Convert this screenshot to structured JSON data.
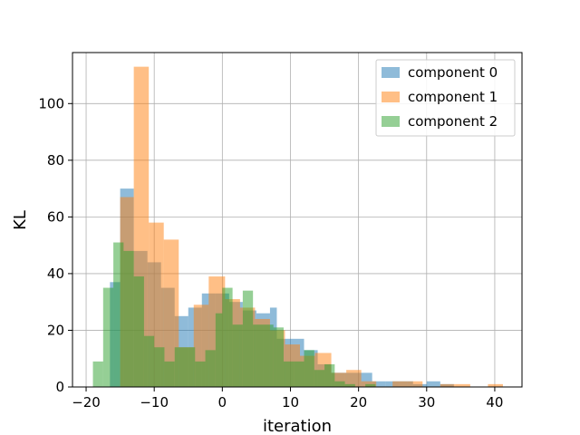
{
  "chart_data": {
    "type": "histogram",
    "title": "",
    "xlabel": "iteration",
    "ylabel": "KL",
    "xlim": [
      -22,
      44
    ],
    "ylim": [
      0,
      118
    ],
    "xticks": [
      -20,
      -10,
      0,
      10,
      20,
      30,
      40
    ],
    "yticks": [
      0,
      20,
      40,
      60,
      80,
      100
    ],
    "grid": true,
    "legend_position": "top-right",
    "series": [
      {
        "name": "component 0",
        "color": "#1f77b4",
        "alpha": 0.5,
        "bins": [
          {
            "x0": -16.5,
            "x1": -15.0,
            "count": 37
          },
          {
            "x0": -15.0,
            "x1": -13.0,
            "count": 70
          },
          {
            "x0": -13.0,
            "x1": -11.0,
            "count": 48
          },
          {
            "x0": -11.0,
            "x1": -9.0,
            "count": 44
          },
          {
            "x0": -9.0,
            "x1": -7.0,
            "count": 35
          },
          {
            "x0": -7.0,
            "x1": -5.0,
            "count": 25
          },
          {
            "x0": -5.0,
            "x1": -3.0,
            "count": 28
          },
          {
            "x0": -3.0,
            "x1": -1.0,
            "count": 33
          },
          {
            "x0": -1.0,
            "x1": 1.0,
            "count": 33
          },
          {
            "x0": 1.0,
            "x1": 3.0,
            "count": 30
          },
          {
            "x0": 3.0,
            "x1": 5.0,
            "count": 27
          },
          {
            "x0": 5.0,
            "x1": 7.0,
            "count": 26
          },
          {
            "x0": 7.0,
            "x1": 8.0,
            "count": 28
          },
          {
            "x0": 8.0,
            "x1": 10.0,
            "count": 17
          },
          {
            "x0": 10.0,
            "x1": 12.0,
            "count": 17
          },
          {
            "x0": 12.0,
            "x1": 14.0,
            "count": 13
          },
          {
            "x0": 14.0,
            "x1": 16.0,
            "count": 8
          },
          {
            "x0": 16.0,
            "x1": 18.0,
            "count": 5
          },
          {
            "x0": 18.0,
            "x1": 20.0,
            "count": 5
          },
          {
            "x0": 20.0,
            "x1": 22.0,
            "count": 5
          },
          {
            "x0": 22.0,
            "x1": 24.0,
            "count": 2
          },
          {
            "x0": 24.0,
            "x1": 26.0,
            "count": 2
          },
          {
            "x0": 26.0,
            "x1": 28.0,
            "count": 2
          },
          {
            "x0": 28.0,
            "x1": 30.0,
            "count": 1
          },
          {
            "x0": 30.0,
            "x1": 32.0,
            "count": 2
          },
          {
            "x0": 32.0,
            "x1": 34.0,
            "count": 1
          }
        ]
      },
      {
        "name": "component 1",
        "color": "#ff7f0e",
        "alpha": 0.5,
        "bins": [
          {
            "x0": -15.0,
            "x1": -13.0,
            "count": 67
          },
          {
            "x0": -13.0,
            "x1": -10.8,
            "count": 113
          },
          {
            "x0": -10.8,
            "x1": -8.6,
            "count": 58
          },
          {
            "x0": -8.6,
            "x1": -6.4,
            "count": 52
          },
          {
            "x0": -6.4,
            "x1": -4.2,
            "count": 14
          },
          {
            "x0": -4.2,
            "x1": -2.0,
            "count": 29
          },
          {
            "x0": -2.0,
            "x1": 0.4,
            "count": 39
          },
          {
            "x0": 0.4,
            "x1": 2.6,
            "count": 31
          },
          {
            "x0": 2.6,
            "x1": 4.8,
            "count": 28
          },
          {
            "x0": 4.8,
            "x1": 7.0,
            "count": 24
          },
          {
            "x0": 7.0,
            "x1": 9.2,
            "count": 20
          },
          {
            "x0": 9.2,
            "x1": 11.4,
            "count": 15
          },
          {
            "x0": 11.4,
            "x1": 13.6,
            "count": 11
          },
          {
            "x0": 13.6,
            "x1": 16.0,
            "count": 12
          },
          {
            "x0": 16.0,
            "x1": 18.2,
            "count": 5
          },
          {
            "x0": 18.2,
            "x1": 20.4,
            "count": 6
          },
          {
            "x0": 20.4,
            "x1": 22.6,
            "count": 2
          },
          {
            "x0": 25.0,
            "x1": 27.2,
            "count": 2
          },
          {
            "x0": 27.2,
            "x1": 29.4,
            "count": 2
          },
          {
            "x0": 32.0,
            "x1": 34.2,
            "count": 1
          },
          {
            "x0": 34.2,
            "x1": 36.4,
            "count": 1
          },
          {
            "x0": 39.0,
            "x1": 41.2,
            "count": 1
          }
        ]
      },
      {
        "name": "component 2",
        "color": "#2ca02c",
        "alpha": 0.5,
        "bins": [
          {
            "x0": -19.0,
            "x1": -17.5,
            "count": 9
          },
          {
            "x0": -17.5,
            "x1": -16.0,
            "count": 35
          },
          {
            "x0": -16.0,
            "x1": -14.5,
            "count": 51
          },
          {
            "x0": -14.5,
            "x1": -13.0,
            "count": 48
          },
          {
            "x0": -13.0,
            "x1": -11.5,
            "count": 39
          },
          {
            "x0": -11.5,
            "x1": -10.0,
            "count": 18
          },
          {
            "x0": -10.0,
            "x1": -8.5,
            "count": 14
          },
          {
            "x0": -8.5,
            "x1": -7.0,
            "count": 9
          },
          {
            "x0": -7.0,
            "x1": -5.5,
            "count": 14
          },
          {
            "x0": -5.5,
            "x1": -4.0,
            "count": 14
          },
          {
            "x0": -4.0,
            "x1": -2.5,
            "count": 9
          },
          {
            "x0": -2.5,
            "x1": -1.0,
            "count": 13
          },
          {
            "x0": -1.0,
            "x1": 0.0,
            "count": 26
          },
          {
            "x0": 0.0,
            "x1": 1.5,
            "count": 35
          },
          {
            "x0": 1.5,
            "x1": 3.0,
            "count": 22
          },
          {
            "x0": 3.0,
            "x1": 4.5,
            "count": 34
          },
          {
            "x0": 4.5,
            "x1": 6.0,
            "count": 22
          },
          {
            "x0": 6.0,
            "x1": 7.5,
            "count": 22
          },
          {
            "x0": 7.5,
            "x1": 9.0,
            "count": 21
          },
          {
            "x0": 9.0,
            "x1": 10.5,
            "count": 9
          },
          {
            "x0": 10.5,
            "x1": 12.0,
            "count": 9
          },
          {
            "x0": 12.0,
            "x1": 13.5,
            "count": 13
          },
          {
            "x0": 13.5,
            "x1": 15.0,
            "count": 6
          },
          {
            "x0": 15.0,
            "x1": 16.5,
            "count": 8
          },
          {
            "x0": 16.5,
            "x1": 18.0,
            "count": 2
          },
          {
            "x0": 18.0,
            "x1": 19.5,
            "count": 1
          },
          {
            "x0": 21.0,
            "x1": 22.5,
            "count": 1
          }
        ]
      }
    ]
  }
}
